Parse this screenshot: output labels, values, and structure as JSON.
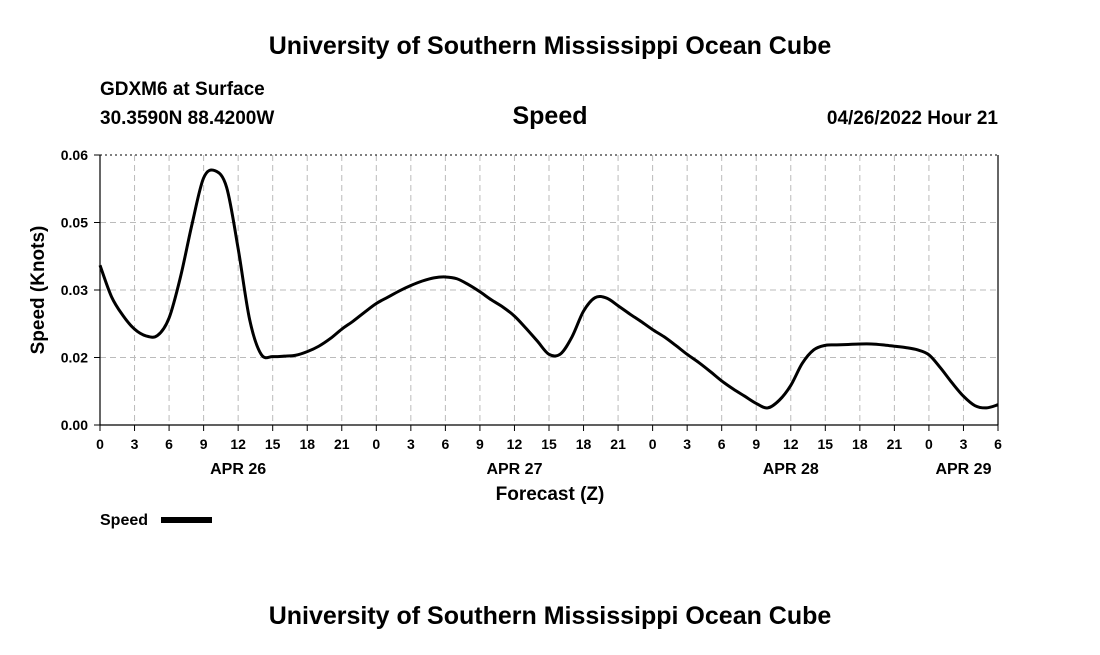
{
  "header": {
    "title_top": "University of Southern Mississippi Ocean Cube",
    "station": "GDXM6 at Surface",
    "coords": "30.3590N  88.4200W",
    "datetime": "04/26/2022 Hour 21",
    "title_bottom": "University of Southern Mississippi Ocean Cube"
  },
  "chart_data": {
    "type": "line",
    "title": "Speed",
    "xlabel": "Forecast (Z)",
    "ylabel": "Speed (Knots)",
    "ylim": [
      0,
      0.06
    ],
    "yticks": [
      "0.00",
      "0.02",
      "0.03",
      "0.05",
      "0.06"
    ],
    "ytick_values": [
      0,
      0.015,
      0.03,
      0.045,
      0.06
    ],
    "xlim": [
      0,
      78
    ],
    "xtick_hours": [
      0,
      3,
      6,
      9,
      12,
      15,
      18,
      21,
      24,
      27,
      30,
      33,
      36,
      39,
      42,
      45,
      48,
      51,
      54,
      57,
      60,
      63,
      66,
      69,
      72,
      75,
      78
    ],
    "xtick_labels": [
      "0",
      "3",
      "6",
      "9",
      "12",
      "15",
      "18",
      "21",
      "0",
      "3",
      "6",
      "9",
      "12",
      "15",
      "18",
      "21",
      "0",
      "3",
      "6",
      "9",
      "12",
      "15",
      "18",
      "21",
      "0",
      "3",
      "6"
    ],
    "date_labels": [
      {
        "hour": 12,
        "label": "APR 26"
      },
      {
        "hour": 36,
        "label": "APR 27"
      },
      {
        "hour": 60,
        "label": "APR 28"
      },
      {
        "hour": 75,
        "label": "APR 29"
      }
    ],
    "grid": true,
    "legend": {
      "label": "Speed",
      "position": "bottom-left"
    },
    "series": [
      {
        "name": "Speed",
        "color": "#000000",
        "x": [
          0,
          1,
          2,
          3,
          4,
          5,
          6,
          7,
          8,
          9,
          10,
          11,
          12,
          13,
          14,
          15,
          16,
          17,
          18,
          19,
          20,
          21,
          22,
          23,
          24,
          25,
          26,
          27,
          28,
          29,
          30,
          31,
          32,
          33,
          34,
          35,
          36,
          37,
          38,
          39,
          40,
          41,
          42,
          43,
          44,
          45,
          46,
          47,
          48,
          49,
          50,
          51,
          52,
          53,
          54,
          55,
          56,
          57,
          58,
          59,
          60,
          61,
          62,
          63,
          64,
          65,
          66,
          67,
          68,
          69,
          70,
          71,
          72,
          73,
          74,
          75,
          76,
          77,
          78
        ],
        "values": [
          0.0355,
          0.0285,
          0.0243,
          0.0213,
          0.0198,
          0.0199,
          0.0238,
          0.033,
          0.0447,
          0.0549,
          0.0565,
          0.0528,
          0.0392,
          0.0234,
          0.0157,
          0.0152,
          0.0153,
          0.0155,
          0.0163,
          0.0175,
          0.0192,
          0.0213,
          0.0231,
          0.0251,
          0.027,
          0.0284,
          0.0298,
          0.031,
          0.032,
          0.0327,
          0.0329,
          0.0325,
          0.0312,
          0.0296,
          0.0278,
          0.0262,
          0.0242,
          0.0215,
          0.0186,
          0.0157,
          0.0158,
          0.0196,
          0.0253,
          0.0283,
          0.0282,
          0.0265,
          0.0247,
          0.023,
          0.0212,
          0.0196,
          0.0177,
          0.0157,
          0.0139,
          0.0119,
          0.0098,
          0.008,
          0.0064,
          0.0048,
          0.0038,
          0.0055,
          0.0088,
          0.0137,
          0.0167,
          0.0177,
          0.0178,
          0.0179,
          0.018,
          0.018,
          0.0178,
          0.0175,
          0.0172,
          0.0167,
          0.0156,
          0.0127,
          0.0094,
          0.0064,
          0.0043,
          0.0038,
          0.0045
        ]
      }
    ]
  }
}
